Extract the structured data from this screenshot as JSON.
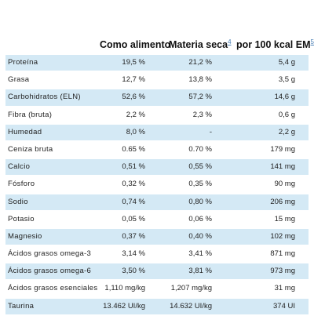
{
  "header": {
    "col1": "Como alimento",
    "col2": "Materia seca",
    "col2_note": "4",
    "col3": "por 100 kcal EM",
    "col3_note": "5"
  },
  "rows": [
    {
      "nutrient": "Proteína",
      "as_fed": "19,5 %",
      "dry_matter": "21,2 %",
      "per_100kcal": "5,4 g"
    },
    {
      "nutrient": "Grasa",
      "as_fed": "12,7 %",
      "dry_matter": "13,8 %",
      "per_100kcal": "3,5 g"
    },
    {
      "nutrient": "Carbohidratos (ELN)",
      "as_fed": "52,6 %",
      "dry_matter": "57,2 %",
      "per_100kcal": "14,6 g"
    },
    {
      "nutrient": "Fibra (bruta)",
      "as_fed": "2,2 %",
      "dry_matter": "2,3 %",
      "per_100kcal": "0,6 g"
    },
    {
      "nutrient": "Humedad",
      "as_fed": "8,0 %",
      "dry_matter": "-",
      "per_100kcal": "2,2 g"
    },
    {
      "nutrient": "Ceniza bruta",
      "as_fed": "0.65 %",
      "dry_matter": "0.70 %",
      "per_100kcal": "179 mg"
    },
    {
      "nutrient": "Calcio",
      "as_fed": "0,51 %",
      "dry_matter": "0,55 %",
      "per_100kcal": "141 mg"
    },
    {
      "nutrient": "Fósforo",
      "as_fed": "0,32 %",
      "dry_matter": "0,35 %",
      "per_100kcal": "90 mg"
    },
    {
      "nutrient": "Sodio",
      "as_fed": "0,74 %",
      "dry_matter": "0,80 %",
      "per_100kcal": "206 mg"
    },
    {
      "nutrient": "Potasio",
      "as_fed": "0,05 %",
      "dry_matter": "0,06 %",
      "per_100kcal": "15 mg"
    },
    {
      "nutrient": "Magnesio",
      "as_fed": "0,37 %",
      "dry_matter": "0,40 %",
      "per_100kcal": "102 mg"
    },
    {
      "nutrient": "Ácidos grasos omega-3",
      "as_fed": "3,14 %",
      "dry_matter": "3,41 %",
      "per_100kcal": "871 mg"
    },
    {
      "nutrient": "Ácidos grasos omega-6",
      "as_fed": "3,50 %",
      "dry_matter": "3,81 %",
      "per_100kcal": "973 mg"
    },
    {
      "nutrient": "Ácidos grasos esenciales",
      "as_fed": "1,110 mg/kg",
      "dry_matter": "1,207 mg/kg",
      "per_100kcal": "31 mg"
    },
    {
      "nutrient": "Taurina",
      "as_fed": "13.462 UI/kg",
      "dry_matter": "14.632 UI/kg",
      "per_100kcal": "374 UI"
    }
  ]
}
